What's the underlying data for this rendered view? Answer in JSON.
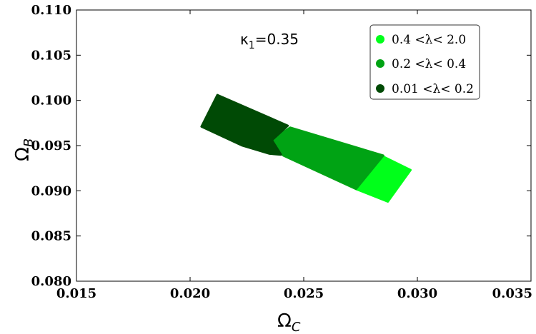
{
  "chart_data": {
    "type": "scatter",
    "title": "",
    "xlabel": "Ω",
    "xlabel_sub": "C",
    "ylabel": "Ω",
    "ylabel_sub": "B",
    "xlim": [
      0.015,
      0.035
    ],
    "ylim": [
      0.08,
      0.11
    ],
    "xticks": [
      "0.015",
      "0.020",
      "0.025",
      "0.030",
      "0.035"
    ],
    "yticks": [
      "0.080",
      "0.085",
      "0.090",
      "0.095",
      "0.100",
      "0.105",
      "0.110"
    ],
    "annotation": {
      "symbol": "κ",
      "sub": "1",
      "text": "=0.35"
    },
    "grid": false,
    "legend_position": "top-right",
    "series": [
      {
        "name": "0.4 <λ< 2.0",
        "color": "#00ff1a",
        "polygon": [
          [
            0.0284,
            0.0939
          ],
          [
            0.0297,
            0.0923
          ],
          [
            0.0287,
            0.0888
          ],
          [
            0.0273,
            0.0902
          ]
        ]
      },
      {
        "name": "0.2 <λ< 0.4",
        "color": "#00a314",
        "polygon": [
          [
            0.0244,
            0.097
          ],
          [
            0.0285,
            0.0939
          ],
          [
            0.0273,
            0.0902
          ],
          [
            0.0241,
            0.0939
          ],
          [
            0.0236,
            0.0956
          ]
        ]
      },
      {
        "name": "0.01 <λ< 0.2",
        "color": "#004a05",
        "polygon": [
          [
            0.0212,
            0.1006
          ],
          [
            0.0243,
            0.0972
          ],
          [
            0.0236,
            0.0956
          ],
          [
            0.024,
            0.094
          ],
          [
            0.0235,
            0.0941
          ],
          [
            0.0223,
            0.095
          ],
          [
            0.0205,
            0.0971
          ]
        ]
      }
    ]
  }
}
